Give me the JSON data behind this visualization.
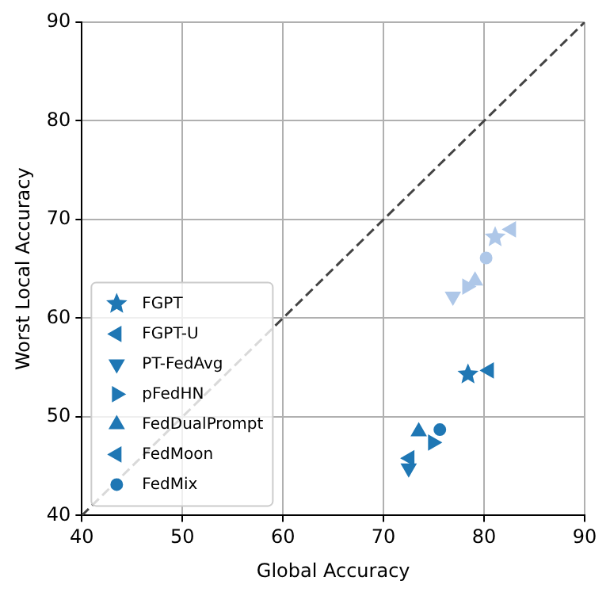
{
  "chart_data": {
    "type": "scatter",
    "xlabel": "Global Accuracy",
    "ylabel": "Worst Local Accuracy",
    "xlim": [
      40,
      90
    ],
    "ylim": [
      40,
      90
    ],
    "xticks": [
      40,
      50,
      60,
      70,
      80,
      90
    ],
    "yticks": [
      40,
      50,
      60,
      70,
      80,
      90
    ],
    "grid": true,
    "legend": "bottom left",
    "series": [
      {
        "name": "FGPT",
        "color": "#1f77b4",
        "marker": "star",
        "x": [
          78.4
        ],
        "values": [
          54.3
        ]
      },
      {
        "name": "FGPT-U",
        "color": "#1f77b4",
        "marker": "triangle_left",
        "x": [
          80.5
        ],
        "values": [
          54.7
        ]
      },
      {
        "name": "PT-FedAvg",
        "color": "#1f77b4",
        "marker": "triangle_down",
        "x": [
          72.5
        ],
        "values": [
          44.8
        ]
      },
      {
        "name": "pFedHN",
        "color": "#1f77b4",
        "marker": "triangle_right",
        "x": [
          74.9
        ],
        "values": [
          47.4
        ]
      },
      {
        "name": "FedDualPrompt",
        "color": "#1f77b4",
        "marker": "triangle_up",
        "x": [
          73.5
        ],
        "values": [
          48.5
        ]
      },
      {
        "name": "FedMoon",
        "color": "#1f77b4",
        "marker": "triangle_left",
        "x": [
          72.6
        ],
        "values": [
          45.8
        ]
      },
      {
        "name": "FedMix",
        "color": "#1f77b4",
        "marker": "circle",
        "x": [
          75.6
        ],
        "values": [
          48.7
        ]
      },
      {
        "color": "#aec7e8",
        "marker": "star",
        "x": [
          81.1
        ],
        "values": [
          68.2
        ]
      },
      {
        "color": "#aec7e8",
        "marker": "triangle_left",
        "x": [
          82.7
        ],
        "values": [
          69.0
        ]
      },
      {
        "color": "#aec7e8",
        "marker": "triangle_down",
        "x": [
          76.9
        ],
        "values": [
          62.2
        ]
      },
      {
        "color": "#aec7e8",
        "marker": "triangle_right",
        "x": [
          78.3
        ],
        "values": [
          63.2
        ]
      },
      {
        "color": "#aec7e8",
        "marker": "triangle_up",
        "x": [
          79.1
        ],
        "values": [
          63.8
        ]
      },
      {
        "color": "#aec7e8",
        "marker": "circle",
        "x": [
          80.2
        ],
        "values": [
          66.1
        ]
      },
      {
        "type": "line",
        "color": "#444444",
        "line_style": "dashed",
        "marker": "none",
        "x": [
          40,
          90
        ],
        "values": [
          40,
          90
        ]
      }
    ]
  }
}
